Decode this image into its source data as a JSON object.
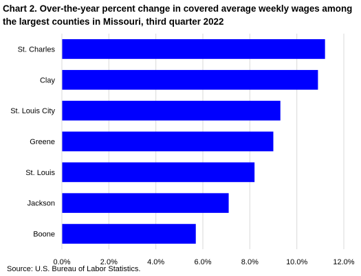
{
  "title_prefix": "Chart 2.",
  "title": "Over-the-year percent change in covered average weekly wages among the largest counties in Missouri, third quarter 2022",
  "source": "Source: U.S. Bureau of Labor Statistics.",
  "chart_data": {
    "type": "bar",
    "orientation": "horizontal",
    "categories": [
      "St. Charles",
      "Clay",
      "St. Louis City",
      "Greene",
      "St. Louis",
      "Jackson",
      "Boone"
    ],
    "values": [
      11.2,
      10.9,
      9.3,
      9.0,
      8.2,
      7.1,
      5.7
    ],
    "unit": "percent",
    "xlim": [
      0,
      12
    ],
    "xticks": [
      "0.0%",
      "2.0%",
      "4.0%",
      "6.0%",
      "8.0%",
      "10.0%",
      "12.0%"
    ],
    "xlabel": "",
    "ylabel": "",
    "grid": true,
    "bar_color": "#0000ff",
    "grid_color": "#d9d9d9"
  }
}
